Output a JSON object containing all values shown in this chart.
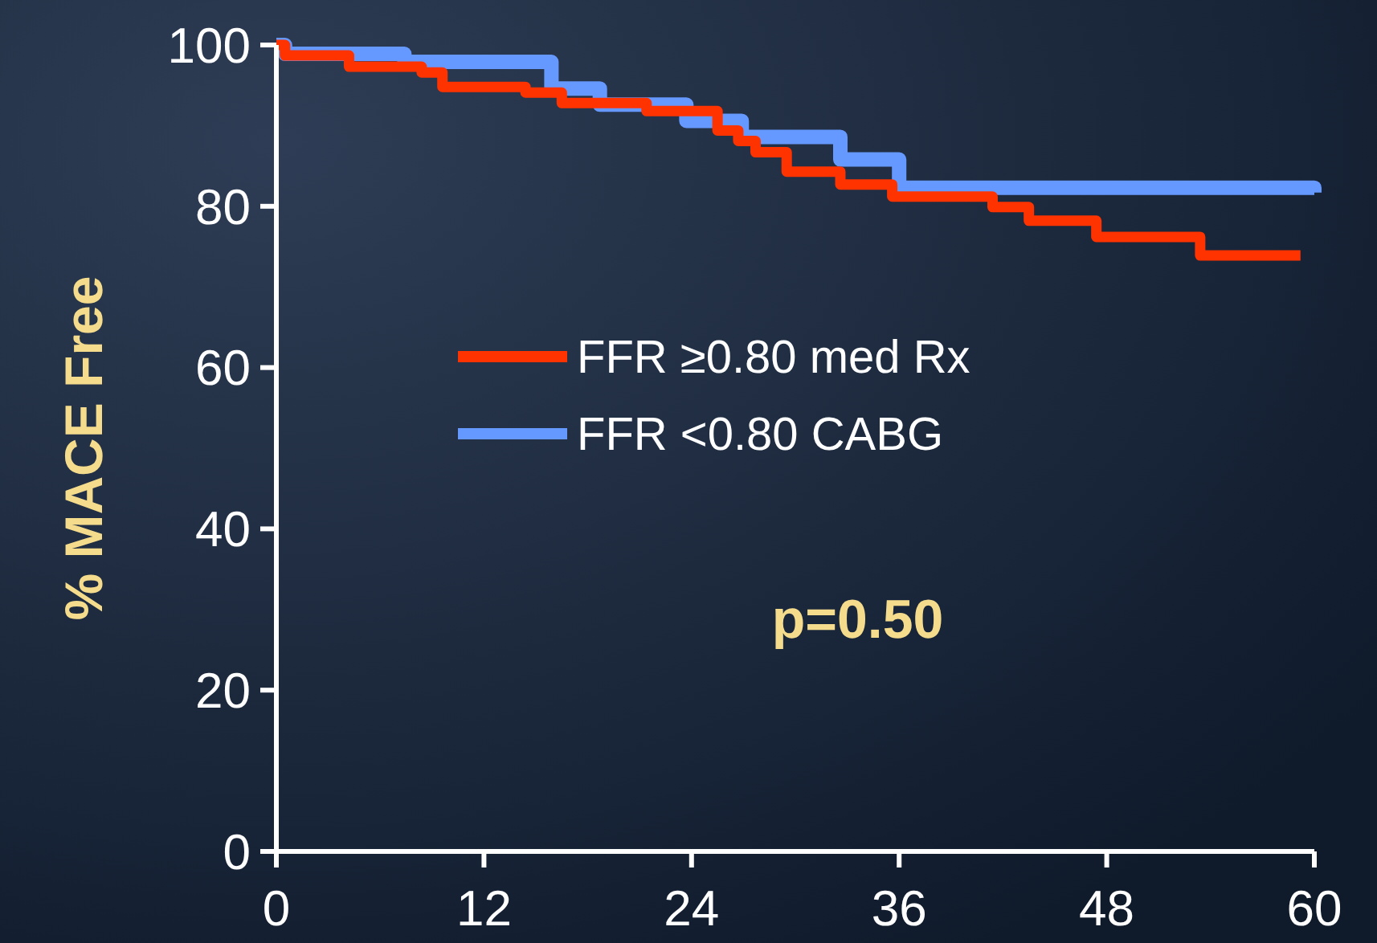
{
  "chart_data": {
    "type": "step",
    "ylabel": "% MACE Free",
    "xlim": [
      0,
      60
    ],
    "xticks": [
      0,
      12,
      24,
      36,
      48,
      60
    ],
    "ylim": [
      0,
      100
    ],
    "yticks": [
      0,
      20,
      40,
      60,
      80,
      100
    ],
    "grid": false,
    "legend": "center",
    "line_style": "solid",
    "marker": "none",
    "series": [
      {
        "name": "FFR ≥0.80 med Rx",
        "color": "#ff3300",
        "x": [
          0,
          0.5,
          4.2,
          8.4,
          9.6,
          14.4,
          16.5,
          21.4,
          25.5,
          26.7,
          27.7,
          29.5,
          32.6,
          35.6,
          41.4,
          43.5,
          47.4,
          53.4,
          59.2
        ],
        "values": [
          100,
          98.7,
          97.3,
          96.6,
          94.8,
          94.1,
          92.8,
          91.8,
          89.4,
          88.1,
          86.7,
          84.3,
          82.7,
          81.2,
          79.9,
          78.2,
          76.2,
          73.9,
          73.9
        ]
      },
      {
        "name": "FFR <0.80 CABG",
        "color": "#6699ff",
        "x": [
          0,
          0.5,
          7.4,
          15.9,
          18.7,
          23.7,
          26.9,
          32.6,
          36,
          60
        ],
        "values": [
          100,
          98.9,
          97.9,
          94.6,
          92.6,
          90.6,
          88.6,
          85.8,
          82.3,
          81.7
        ]
      }
    ],
    "annotations": [
      "p=0.50"
    ]
  }
}
